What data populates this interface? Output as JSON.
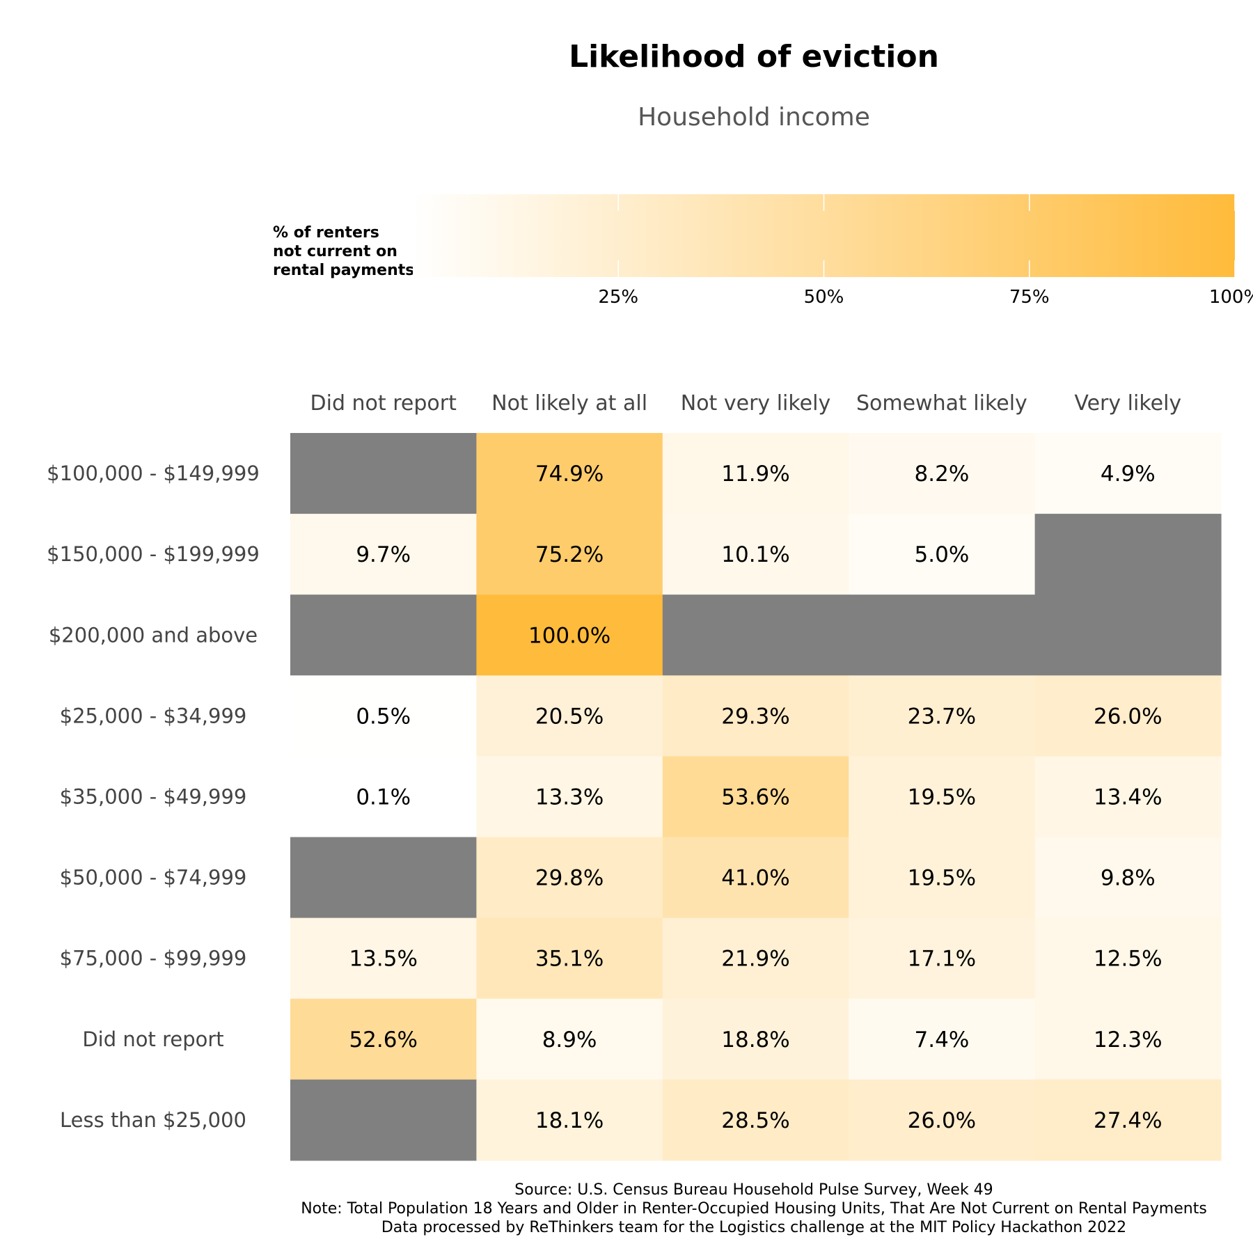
{
  "chart_data": {
    "type": "heatmap",
    "title": "Likelihood of eviction",
    "subtitle": "Household income",
    "legend": {
      "title_lines": [
        "% of renters",
        "not current on",
        "rental payments"
      ],
      "ticks": [
        {
          "value": 25,
          "label": "25%"
        },
        {
          "value": 50,
          "label": "50%"
        },
        {
          "value": 75,
          "label": "75%"
        },
        {
          "value": 100,
          "label": "100%"
        }
      ],
      "placement": "top",
      "color_low": "#ffffff",
      "color_high": "#ffbb3b",
      "missing_color": "#808080"
    },
    "columns": [
      "Did not report",
      "Not likely at all",
      "Not very likely",
      "Somewhat likely",
      "Very likely"
    ],
    "rows": [
      {
        "label": "$100,000 - $149,999",
        "values": [
          null,
          74.9,
          11.9,
          8.2,
          4.9
        ],
        "labels": [
          "",
          "74.9%",
          "11.9%",
          "8.2%",
          "4.9%"
        ]
      },
      {
        "label": "$150,000 - $199,999",
        "values": [
          9.7,
          75.2,
          10.1,
          5.0,
          null
        ],
        "labels": [
          "9.7%",
          "75.2%",
          "10.1%",
          "5.0%",
          ""
        ]
      },
      {
        "label": "$200,000 and above",
        "values": [
          null,
          100.0,
          null,
          null,
          null
        ],
        "labels": [
          "",
          "100.0%",
          "",
          "",
          ""
        ]
      },
      {
        "label": "$25,000 - $34,999",
        "values": [
          0.5,
          20.5,
          29.3,
          23.7,
          26.0
        ],
        "labels": [
          "0.5%",
          "20.5%",
          "29.3%",
          "23.7%",
          "26.0%"
        ]
      },
      {
        "label": "$35,000 - $49,999",
        "values": [
          0.1,
          13.3,
          53.6,
          19.5,
          13.4
        ],
        "labels": [
          "0.1%",
          "13.3%",
          "53.6%",
          "19.5%",
          "13.4%"
        ]
      },
      {
        "label": "$50,000 - $74,999",
        "values": [
          null,
          29.8,
          41.0,
          19.5,
          9.8
        ],
        "labels": [
          "",
          "29.8%",
          "41.0%",
          "19.5%",
          "9.8%"
        ]
      },
      {
        "label": "$75,000 - $99,999",
        "values": [
          13.5,
          35.1,
          21.9,
          17.1,
          12.5
        ],
        "labels": [
          "13.5%",
          "35.1%",
          "21.9%",
          "17.1%",
          "12.5%"
        ]
      },
      {
        "label": "Did not report",
        "values": [
          52.6,
          8.9,
          18.8,
          7.4,
          12.3
        ],
        "labels": [
          "52.6%",
          "8.9%",
          "18.8%",
          "7.4%",
          "12.3%"
        ]
      },
      {
        "label": "Less than $25,000",
        "values": [
          null,
          18.1,
          28.5,
          26.0,
          27.4
        ],
        "labels": [
          "",
          "18.1%",
          "28.5%",
          "26.0%",
          "27.4%"
        ]
      }
    ],
    "caption_lines": [
      "Source: U.S. Census Bureau Household Pulse Survey, Week 49",
      "Note: Total Population 18 Years and Older in Renter-Occupied Housing Units, That Are Not Current on Rental Payments",
      "Data processed by ReThinkers team for the Logistics challenge at the MIT Policy Hackathon 2022"
    ]
  }
}
